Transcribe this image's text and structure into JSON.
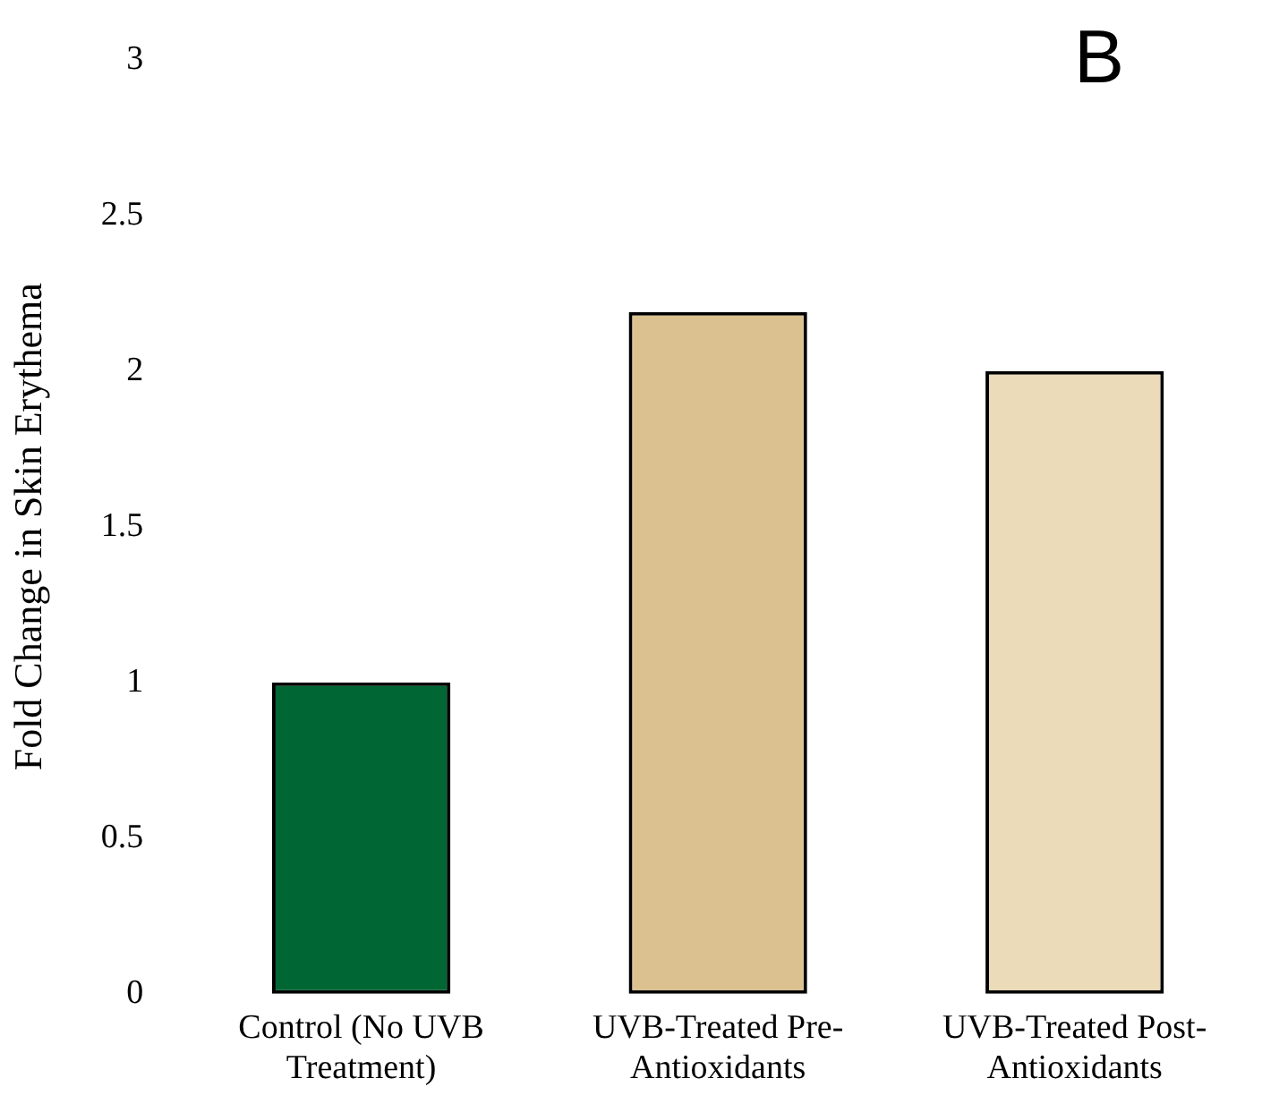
{
  "chart_data": {
    "type": "bar",
    "title": "B",
    "ylabel": "Fold Change in Skin Erythema",
    "categories": [
      "Control (No UVB Treatment)",
      "UVB-Treated Pre-Antioxidants",
      "UVB-Treated Post-Antioxidants"
    ],
    "values": [
      1,
      2.19,
      2
    ],
    "colors": [
      "#006633",
      "#dcc190",
      "#ebdbb9"
    ],
    "ylim": [
      0,
      3
    ],
    "yticks": [
      0,
      0.5,
      1,
      1.5,
      2,
      2.5,
      3
    ],
    "grid": false,
    "legend": false
  }
}
